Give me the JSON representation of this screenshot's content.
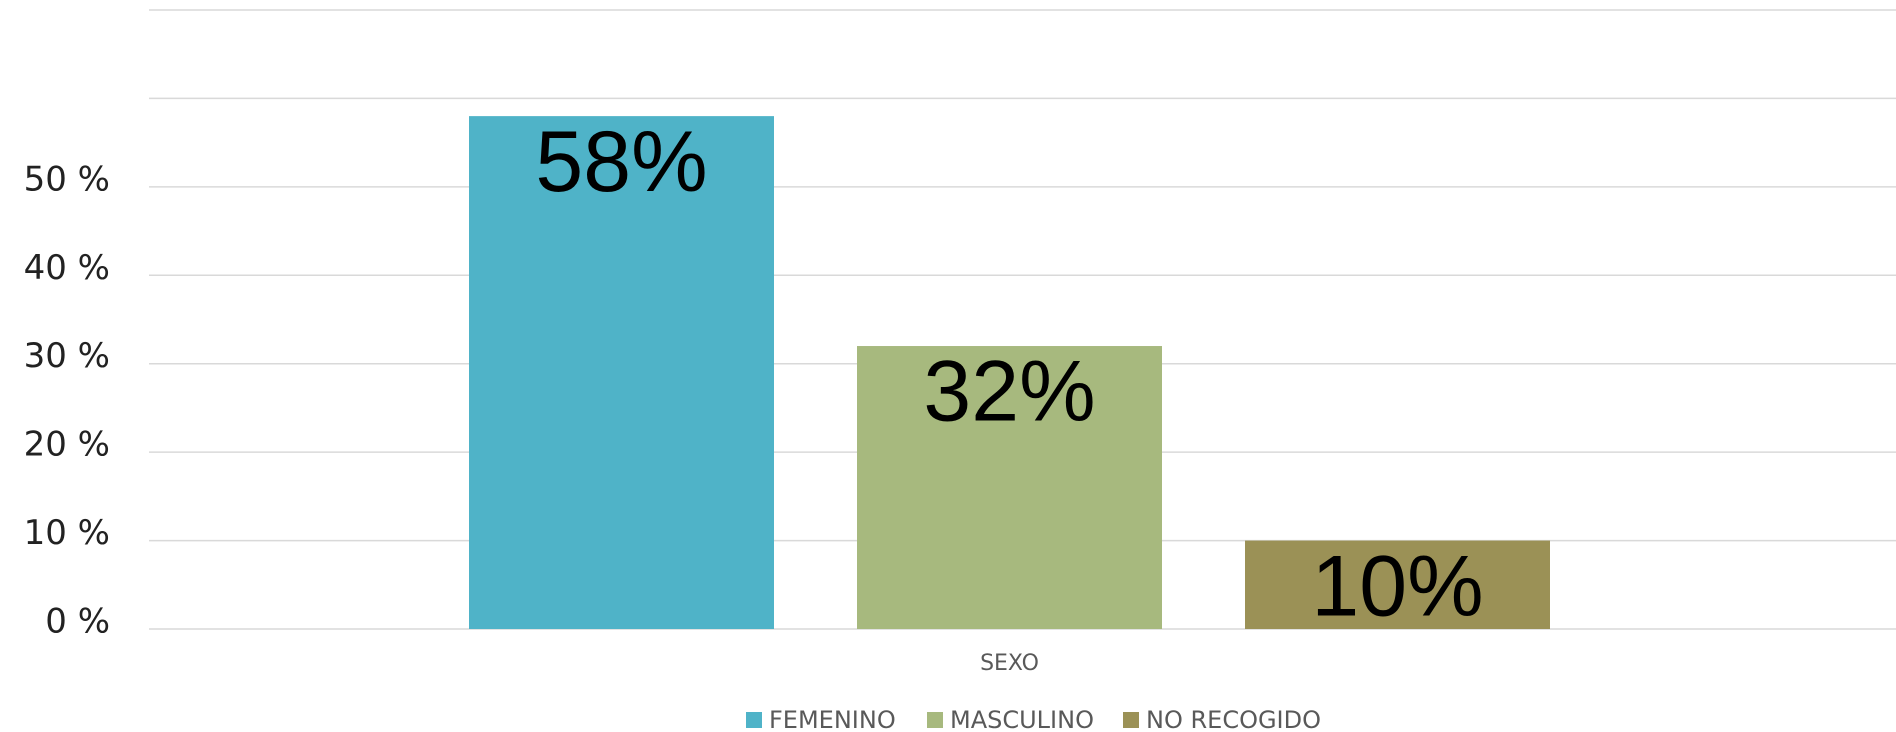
{
  "chart_data": {
    "type": "bar",
    "categories": [
      "SEXO"
    ],
    "series": [
      {
        "name": "FEMENINO",
        "color": "#4fb3c8",
        "values": [
          58
        ],
        "value_labels": [
          "58%"
        ]
      },
      {
        "name": "MASCULINO",
        "color": "#a7b97e",
        "values": [
          32
        ],
        "value_labels": [
          "32%"
        ]
      },
      {
        "name": "NO RECOGIDO",
        "color": "#9b9156",
        "values": [
          10
        ],
        "value_labels": [
          "10%"
        ]
      }
    ],
    "ylim": [
      0,
      70
    ],
    "yticks": [
      {
        "value": 0,
        "label": "0 %"
      },
      {
        "value": 10,
        "label": "10 %"
      },
      {
        "value": 20,
        "label": "20 %"
      },
      {
        "value": 30,
        "label": "30 %"
      },
      {
        "value": 40,
        "label": "40 %"
      },
      {
        "value": 50,
        "label": "50 %"
      }
    ],
    "gridlines": [
      0,
      10,
      20,
      30,
      40,
      50,
      60,
      70
    ],
    "grid": true,
    "legend": "bottom"
  }
}
